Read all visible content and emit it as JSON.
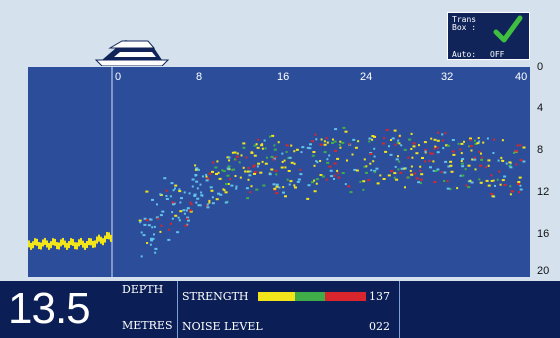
{
  "trans_box": {
    "line1": "Trans",
    "line2": "Box :",
    "auto_label": "Auto:",
    "auto_value": "OFF",
    "check_icon": "check-icon"
  },
  "boat_icon": "boat-icon",
  "sonar": {
    "range_ticks": [
      "0",
      "8",
      "16",
      "24",
      "32",
      "40"
    ],
    "depth_ticks": [
      "0",
      "4",
      "8",
      "12",
      "16",
      "20"
    ],
    "depth_range": [
      0,
      20
    ],
    "range_range": [
      0,
      40
    ],
    "bottom_depth": 16.8,
    "colors": {
      "water": "#2c4e9a",
      "bottom": "#f2e51a",
      "target_low": "#5fc3ea",
      "target_mid": "#f2e51a",
      "target_high": "#d8262c",
      "target_green": "#3fae49"
    }
  },
  "readout": {
    "depth_value": "13.5",
    "depth_label": "DEPTH",
    "units_label": "METRES",
    "strength_label": "STRENGTH",
    "strength_value": "137",
    "noise_label": "NOISE LEVEL",
    "noise_value": "022"
  },
  "strength_bar": [
    {
      "color": "#f2e51a",
      "fraction": 0.34
    },
    {
      "color": "#3fae49",
      "fraction": 0.28
    },
    {
      "color": "#d8262c",
      "fraction": 0.38
    }
  ]
}
